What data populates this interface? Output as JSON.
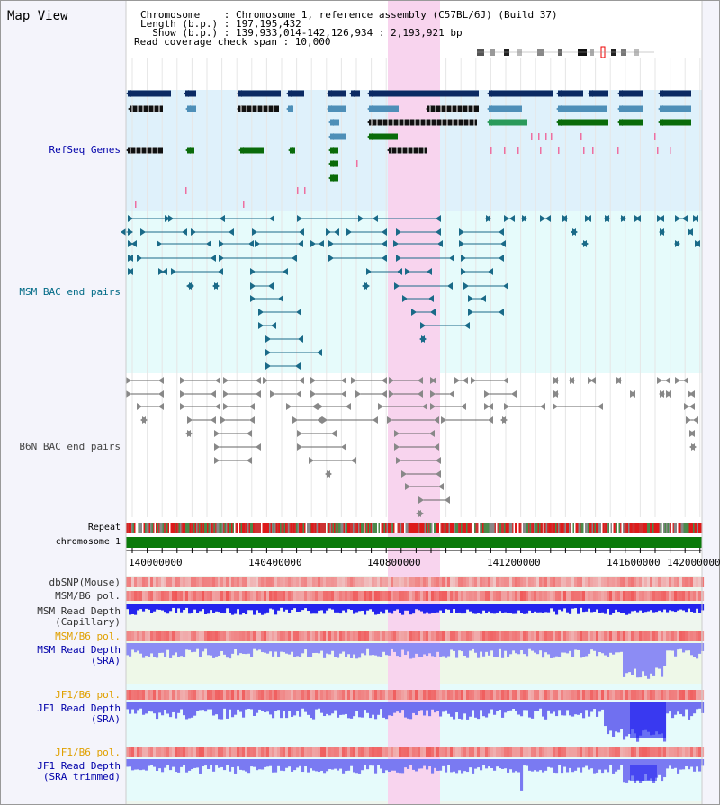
{
  "title": "Map View",
  "info": {
    "line1": "Chromosome    : Chromosome 1, reference assembly (C57BL/6J) (Build 37)",
    "line2": "Length (b.p.) : 197,195,432",
    "line3": "  Show (b.p.) : 139,933,014-142,126,934 : 2,193,921 bp",
    "line4": "Read coverage check span : 10,000"
  },
  "tracks": {
    "refseq": "RefSeq Genes",
    "msm_bac": "MSM BAC end pairs",
    "b6n_bac": "B6N BAC end pairs",
    "repeat": "Repeat",
    "chromosome": "chromosome 1",
    "dbsnp": "dbSNP(Mouse)",
    "msm_b6_pol": "MSM/B6 pol.",
    "msm_depth_cap_1": "MSM Read Depth",
    "msm_depth_cap_2": "(Capillary)",
    "msm_b6_pol_sra": "MSM/B6 pol.",
    "msm_depth_sra_1": "MSM Read Depth",
    "msm_depth_sra_2": "(SRA)",
    "jf1_b6_pol": "JF1/B6 pol.",
    "jf1_depth_sra_1": "JF1 Read Depth",
    "jf1_depth_sra_2": "(SRA)",
    "jf1_b6_pol_2": "JF1/B6 pol.",
    "jf1_depth_trim_1": "JF1 Read Depth",
    "jf1_depth_trim_2": "(SRA trimmed)"
  },
  "axis": {
    "ticks": [
      "140000000",
      "140400000",
      "140800000",
      "141200000",
      "141600000",
      "142000000"
    ]
  },
  "colors": {
    "refseq_bg": "#dff1fb",
    "msm_bg": "#e6fbfb",
    "highlight": "#f8d4ee",
    "gene_dark": "#0b2a63",
    "gene_mid": "#4e8fb8",
    "gene_green": "#0a6b0a",
    "label_blue": "#0000aa",
    "label_teal": "#006a86",
    "label_orange": "#e0a000",
    "depth_blue": "#1a1aee",
    "depth_light": "#8c8cf4"
  }
}
